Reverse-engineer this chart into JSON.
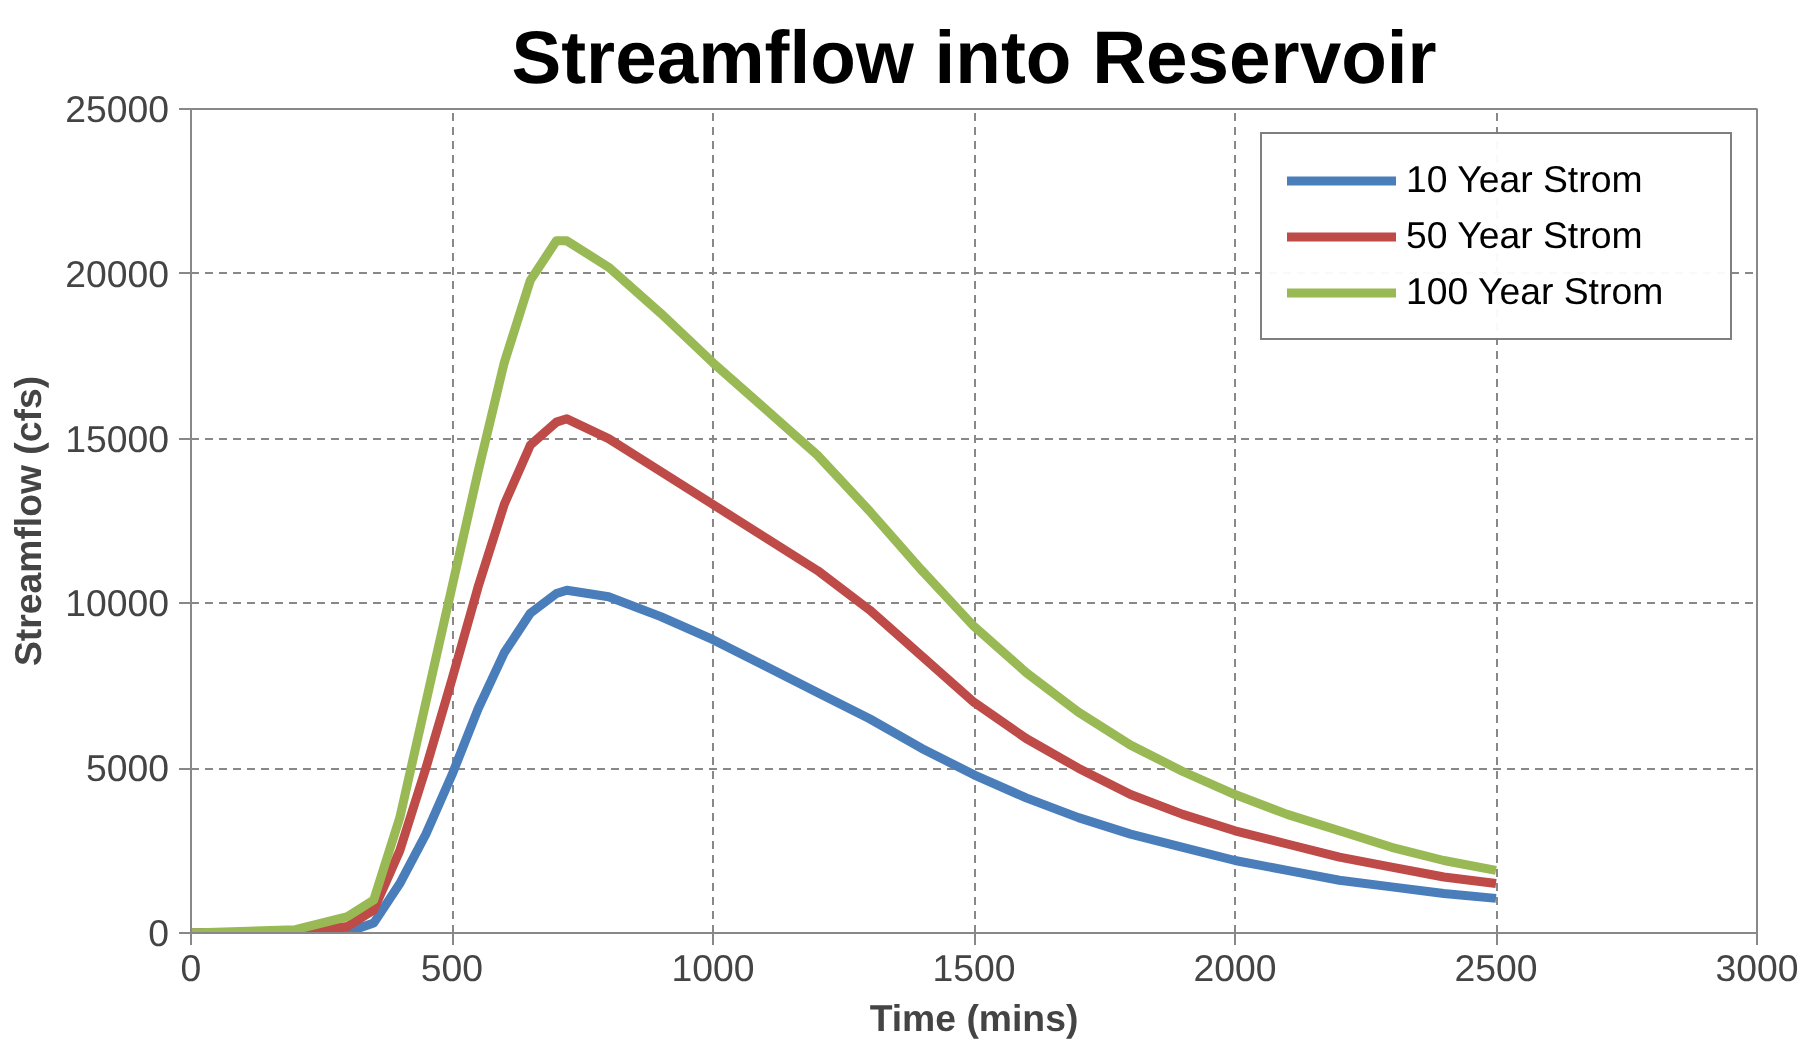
{
  "chart_data": {
    "type": "line",
    "title": "Streamflow into Reservoir",
    "xlabel": "Time (mins)",
    "ylabel": "Streamflow (cfs)",
    "xlim": [
      0,
      3000
    ],
    "xticks": [
      0,
      500,
      1000,
      1500,
      2000,
      2500,
      3000
    ],
    "ylim": [
      0,
      25000
    ],
    "yticks": [
      0,
      5000,
      10000,
      15000,
      20000,
      25000
    ],
    "grid": true,
    "legend": "top right",
    "marker": "none",
    "line_style": "solid",
    "x": [
      0,
      200,
      300,
      350,
      400,
      450,
      500,
      550,
      600,
      650,
      700,
      720,
      800,
      900,
      1000,
      1100,
      1200,
      1300,
      1400,
      1500,
      1600,
      1700,
      1800,
      1900,
      2000,
      2100,
      2200,
      2300,
      2400,
      2500
    ],
    "series": [
      {
        "name": "10 Year Strom",
        "color": "#4a7ebb",
        "values": [
          0,
          0,
          30,
          300,
          1500,
          3000,
          4800,
          6800,
          8500,
          9700,
          10300,
          10400,
          10200,
          9600,
          8900,
          8100,
          7300,
          6500,
          5600,
          4800,
          4100,
          3500,
          3000,
          2600,
          2200,
          1900,
          1600,
          1400,
          1200,
          1050
        ]
      },
      {
        "name": "50 Year Strom",
        "color": "#be4b48",
        "values": [
          0,
          30,
          200,
          700,
          2500,
          5000,
          7700,
          10500,
          13000,
          14800,
          15500,
          15600,
          15000,
          14000,
          13000,
          12000,
          11000,
          9800,
          8400,
          7000,
          5900,
          5000,
          4200,
          3600,
          3100,
          2700,
          2300,
          2000,
          1700,
          1500
        ]
      },
      {
        "name": "100 Year Strom",
        "color": "#98b954",
        "values": [
          0,
          100,
          500,
          1000,
          3500,
          7000,
          10500,
          14000,
          17300,
          19800,
          21000,
          21000,
          20200,
          18800,
          17300,
          15900,
          14500,
          12800,
          11000,
          9300,
          7900,
          6700,
          5700,
          4900,
          4200,
          3600,
          3100,
          2600,
          2200,
          1900
        ]
      }
    ]
  }
}
